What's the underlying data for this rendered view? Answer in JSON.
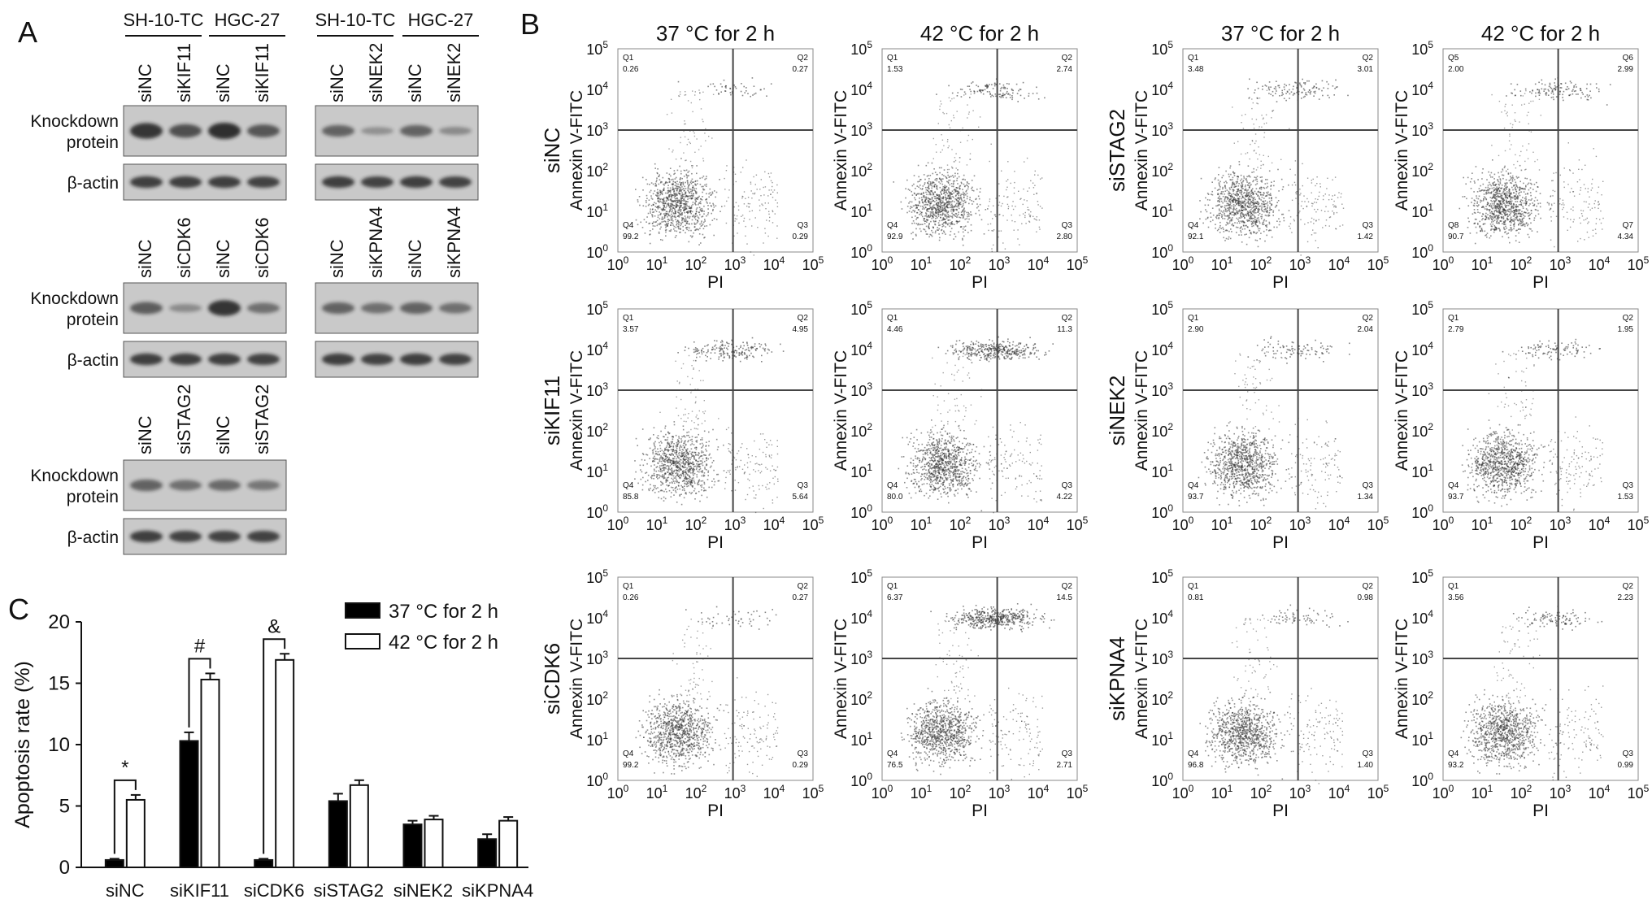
{
  "panel_labels": {
    "a": "A",
    "b": "B",
    "c": "C"
  },
  "panel_a": {
    "groups": {
      "sh": "SH-10-TC",
      "hgc": "HGC-27"
    },
    "row_labels": {
      "knockdown_1": "Knockdown",
      "knockdown_2": "protein",
      "actin": "β-actin"
    },
    "blots": [
      {
        "lanes": [
          "siNC",
          "siKIF11",
          "siNC",
          "siKIF11"
        ],
        "knockdown": [
          0.8,
          0.6,
          0.85,
          0.55
        ],
        "actin": [
          0.55,
          0.55,
          0.55,
          0.5
        ]
      },
      {
        "lanes": [
          "siNC",
          "siNEK2",
          "siNC",
          "siNEK2"
        ],
        "knockdown": [
          0.45,
          0.1,
          0.45,
          0.15
        ],
        "actin": [
          0.55,
          0.5,
          0.55,
          0.5
        ]
      },
      {
        "lanes": [
          "siNC",
          "siCDK6",
          "siNC",
          "siCDK6"
        ],
        "knockdown": [
          0.5,
          0.15,
          0.8,
          0.35
        ],
        "actin": [
          0.55,
          0.55,
          0.55,
          0.5
        ]
      },
      {
        "lanes": [
          "siNC",
          "siKPNA4",
          "siNC",
          "siKPNA4"
        ],
        "knockdown": [
          0.45,
          0.35,
          0.45,
          0.35
        ],
        "actin": [
          0.55,
          0.5,
          0.55,
          0.5
        ]
      },
      {
        "lanes": [
          "siNC",
          "siSTAG2",
          "siNC",
          "siSTAG2"
        ],
        "knockdown": [
          0.45,
          0.35,
          0.4,
          0.3
        ],
        "actin": [
          0.55,
          0.5,
          0.5,
          0.5
        ]
      }
    ]
  },
  "panel_b": {
    "col_headers": [
      "37 °C for 2 h",
      "42 °C for 2 h",
      "37 °C for 2 h",
      "42 °C for 2 h"
    ],
    "x_label": "PI",
    "y_label": "Annexin V-FITC",
    "tick_labels": [
      "10",
      "10",
      "10",
      "10",
      "10",
      "10"
    ],
    "tick_exponents": [
      "0",
      "1",
      "2",
      "3",
      "4",
      "5"
    ],
    "rows": [
      {
        "label": "siNC",
        "plots": [
          {
            "q": [
              [
                "Q1",
                "0.26"
              ],
              [
                "Q2",
                "0.27"
              ],
              [
                "Q3",
                "0.29"
              ],
              [
                "Q4",
                "99.2"
              ]
            ]
          },
          {
            "q": [
              [
                "Q1",
                "1.53"
              ],
              [
                "Q2",
                "2.74"
              ],
              [
                "Q3",
                "2.80"
              ],
              [
                "Q4",
                "92.9"
              ]
            ]
          }
        ]
      },
      {
        "label": "siKIF11",
        "plots": [
          {
            "q": [
              [
                "Q1",
                "3.57"
              ],
              [
                "Q2",
                "4.95"
              ],
              [
                "Q3",
                "5.64"
              ],
              [
                "Q4",
                "85.8"
              ]
            ]
          },
          {
            "q": [
              [
                "Q1",
                "4.46"
              ],
              [
                "Q2",
                "11.3"
              ],
              [
                "Q3",
                "4.22"
              ],
              [
                "Q4",
                "80.0"
              ]
            ]
          }
        ]
      },
      {
        "label": "siCDK6",
        "plots": [
          {
            "q": [
              [
                "Q1",
                "0.26"
              ],
              [
                "Q2",
                "0.27"
              ],
              [
                "Q3",
                "0.29"
              ],
              [
                "Q4",
                "99.2"
              ]
            ]
          },
          {
            "q": [
              [
                "Q1",
                "6.37"
              ],
              [
                "Q2",
                "14.5"
              ],
              [
                "Q3",
                "2.71"
              ],
              [
                "Q4",
                "76.5"
              ]
            ]
          }
        ]
      },
      {
        "label": "siSTAG2",
        "plots": [
          {
            "q": [
              [
                "Q1",
                "3.48"
              ],
              [
                "Q2",
                "3.01"
              ],
              [
                "Q3",
                "1.42"
              ],
              [
                "Q4",
                "92.1"
              ]
            ]
          },
          {
            "q": [
              [
                "Q5",
                "2.00"
              ],
              [
                "Q6",
                "2.99"
              ],
              [
                "Q7",
                "4.34"
              ],
              [
                "Q8",
                "90.7"
              ]
            ]
          }
        ]
      },
      {
        "label": "siNEK2",
        "plots": [
          {
            "q": [
              [
                "Q1",
                "2.90"
              ],
              [
                "Q2",
                "2.04"
              ],
              [
                "Q3",
                "1.34"
              ],
              [
                "Q4",
                "93.7"
              ]
            ]
          },
          {
            "q": [
              [
                "Q1",
                "2.79"
              ],
              [
                "Q2",
                "1.95"
              ],
              [
                "Q3",
                "1.53"
              ],
              [
                "Q4",
                "93.7"
              ]
            ]
          }
        ]
      },
      {
        "label": "siKPNA4",
        "plots": [
          {
            "q": [
              [
                "Q1",
                "0.81"
              ],
              [
                "Q2",
                "0.98"
              ],
              [
                "Q3",
                "1.40"
              ],
              [
                "Q4",
                "96.8"
              ]
            ]
          },
          {
            "q": [
              [
                "Q1",
                "3.56"
              ],
              [
                "Q2",
                "2.23"
              ],
              [
                "Q3",
                "0.99"
              ],
              [
                "Q4",
                "93.2"
              ]
            ]
          }
        ]
      }
    ]
  },
  "chart_data": {
    "type": "bar",
    "categories": [
      "siNC",
      "siKIF11",
      "siCDK6",
      "siSTAG2",
      "siNEK2",
      "siKPNA4"
    ],
    "series": [
      {
        "name": "37 °C for 2 h",
        "values": [
          0.6,
          10.3,
          0.6,
          5.4,
          3.5,
          2.3
        ],
        "errors": [
          0.1,
          0.7,
          0.1,
          0.6,
          0.3,
          0.4
        ],
        "color": "#000000"
      },
      {
        "name": "42 °C for 2 h",
        "values": [
          5.5,
          15.3,
          16.9,
          6.7,
          3.9,
          3.8
        ],
        "errors": [
          0.4,
          0.5,
          0.5,
          0.4,
          0.3,
          0.3
        ],
        "color": "#ffffff"
      }
    ],
    "ylabel": "Apoptosis rate (%)",
    "ylim": [
      0,
      20
    ],
    "yticks": [
      0,
      5,
      10,
      15,
      20
    ],
    "significance": [
      {
        "category": "siNC",
        "symbol": "*"
      },
      {
        "category": "siKIF11",
        "symbol": "#"
      },
      {
        "category": "siCDK6",
        "symbol": "&"
      }
    ],
    "legend_position": "top-right"
  }
}
